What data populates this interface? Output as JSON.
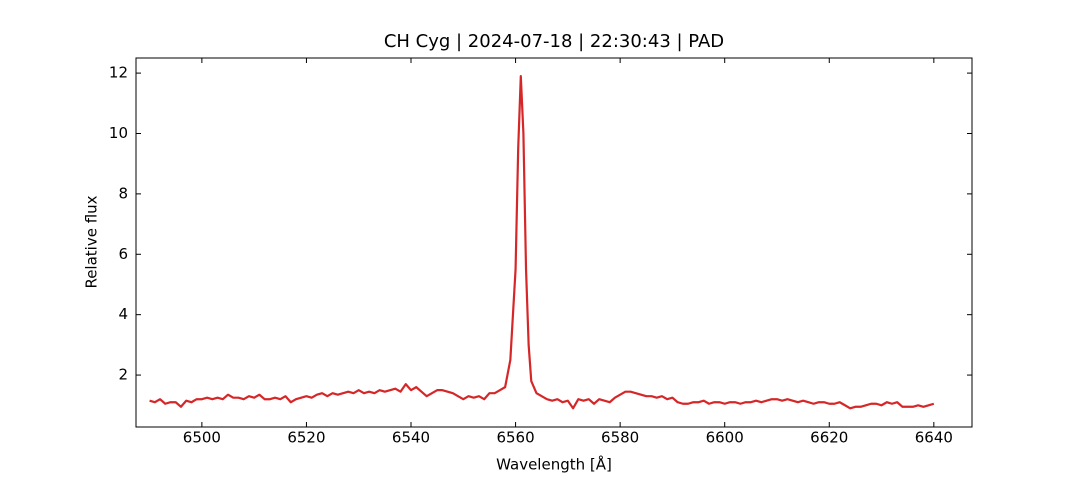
{
  "chart_data": {
    "type": "line",
    "title": "CH Cyg | 2024-07-18 | 22:30:43 | PAD",
    "x_label": "Wavelength [Å]",
    "y_label": "Relative flux",
    "xlim": [
      6487.4,
      6647.3
    ],
    "ylim": [
      0.28,
      12.5
    ],
    "xticks": [
      6500,
      6520,
      6540,
      6560,
      6580,
      6600,
      6620,
      6640
    ],
    "yticks": [
      2,
      4,
      6,
      8,
      10,
      12
    ],
    "series": [
      {
        "color": "#d62728",
        "x": [
          6490,
          6491,
          6492,
          6493,
          6494,
          6495,
          6496,
          6497,
          6498,
          6499,
          6500,
          6501,
          6502,
          6503,
          6504,
          6505,
          6506,
          6507,
          6508,
          6509,
          6510,
          6511,
          6512,
          6513,
          6514,
          6515,
          6516,
          6517,
          6518,
          6519,
          6520,
          6521,
          6522,
          6523,
          6524,
          6525,
          6526,
          6527,
          6528,
          6529,
          6530,
          6531,
          6532,
          6533,
          6534,
          6535,
          6536,
          6537,
          6538,
          6539,
          6540,
          6541,
          6542,
          6543,
          6544,
          6545,
          6546,
          6547,
          6548,
          6549,
          6550,
          6551,
          6552,
          6553,
          6554,
          6555,
          6556,
          6557,
          6558,
          6559,
          6560,
          6560.5,
          6561,
          6561.5,
          6562,
          6562.5,
          6563,
          6564,
          6565,
          6566,
          6567,
          6568,
          6569,
          6570,
          6571,
          6572,
          6573,
          6574,
          6575,
          6576,
          6577,
          6578,
          6579,
          6580,
          6581,
          6582,
          6583,
          6584,
          6585,
          6586,
          6587,
          6588,
          6589,
          6590,
          6591,
          6592,
          6593,
          6594,
          6595,
          6596,
          6597,
          6598,
          6599,
          6600,
          6601,
          6602,
          6603,
          6604,
          6605,
          6606,
          6607,
          6608,
          6609,
          6610,
          6611,
          6612,
          6613,
          6614,
          6615,
          6616,
          6617,
          6618,
          6619,
          6620,
          6621,
          6622,
          6623,
          6624,
          6625,
          6626,
          6627,
          6628,
          6629,
          6630,
          6631,
          6632,
          6633,
          6634,
          6635,
          6636,
          6637,
          6638,
          6639,
          6640
        ],
        "values": [
          1.15,
          1.1,
          1.2,
          1.05,
          1.1,
          1.1,
          0.95,
          1.15,
          1.1,
          1.2,
          1.2,
          1.25,
          1.2,
          1.25,
          1.2,
          1.35,
          1.25,
          1.25,
          1.2,
          1.3,
          1.25,
          1.35,
          1.2,
          1.2,
          1.25,
          1.2,
          1.3,
          1.1,
          1.2,
          1.25,
          1.3,
          1.25,
          1.35,
          1.4,
          1.3,
          1.4,
          1.35,
          1.4,
          1.45,
          1.4,
          1.5,
          1.4,
          1.45,
          1.4,
          1.5,
          1.45,
          1.5,
          1.55,
          1.45,
          1.7,
          1.5,
          1.6,
          1.45,
          1.3,
          1.4,
          1.5,
          1.5,
          1.45,
          1.4,
          1.3,
          1.2,
          1.3,
          1.25,
          1.3,
          1.2,
          1.4,
          1.4,
          1.5,
          1.6,
          2.5,
          5.5,
          9.5,
          11.9,
          10,
          5.5,
          3,
          1.8,
          1.4,
          1.3,
          1.2,
          1.15,
          1.2,
          1.1,
          1.15,
          0.9,
          1.2,
          1.15,
          1.2,
          1.05,
          1.2,
          1.15,
          1.1,
          1.25,
          1.35,
          1.45,
          1.45,
          1.4,
          1.35,
          1.3,
          1.3,
          1.25,
          1.3,
          1.2,
          1.25,
          1.1,
          1.05,
          1.05,
          1.1,
          1.1,
          1.15,
          1.05,
          1.1,
          1.1,
          1.05,
          1.1,
          1.1,
          1.05,
          1.1,
          1.1,
          1.15,
          1.1,
          1.15,
          1.2,
          1.2,
          1.15,
          1.2,
          1.15,
          1.1,
          1.15,
          1.1,
          1.05,
          1.1,
          1.1,
          1.05,
          1.05,
          1.1,
          1.0,
          0.9,
          0.95,
          0.95,
          1.0,
          1.05,
          1.05,
          1.0,
          1.1,
          1.05,
          1.1,
          0.95,
          0.95,
          0.95,
          1.0,
          0.95,
          1.0,
          1.05
        ]
      }
    ]
  }
}
